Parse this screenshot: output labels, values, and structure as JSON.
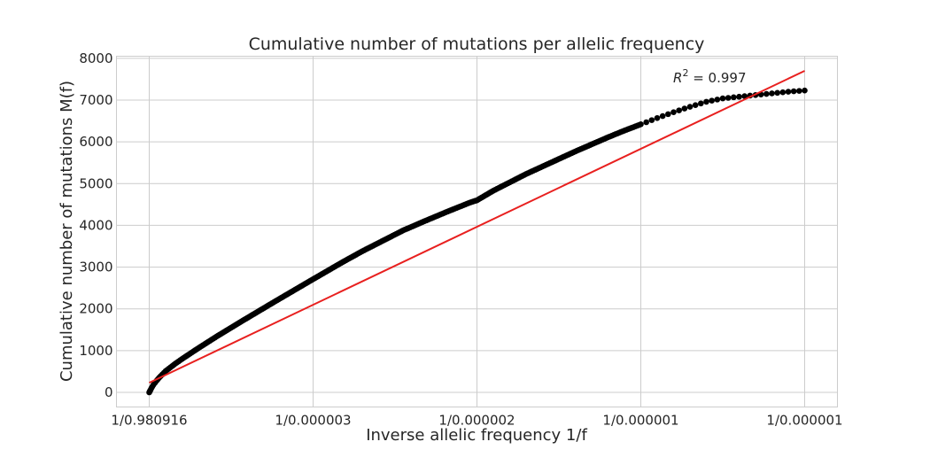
{
  "chart_data": {
    "type": "scatter",
    "title": "Cumulative number of mutations per allelic frequency",
    "xlabel": "Inverse allelic frequency 1/f",
    "ylabel": "Cumulative number of mutations M(f)",
    "x_tick_labels": [
      "1/0.980916",
      "1/0.000003",
      "1/0.000002",
      "1/0.000001",
      "1/0.000001"
    ],
    "x_tick_positions": [
      0,
      100000,
      200000,
      300000,
      400000
    ],
    "xlim": [
      -20000,
      420000
    ],
    "ylim": [
      -350,
      8050
    ],
    "yticks": [
      0,
      1000,
      2000,
      3000,
      4000,
      5000,
      6000,
      7000,
      8000
    ],
    "grid": true,
    "annotation": {
      "r2_value": "0.997"
    },
    "colors": {
      "points": "#000000",
      "fit_line": "#e8201f",
      "grid": "#cccccc"
    },
    "series": [
      {
        "kind": "points",
        "x": [
          0,
          400,
          800,
          1300,
          1900,
          2600,
          3500,
          4500,
          6000,
          8000,
          10000,
          13000,
          16000,
          20000,
          25000,
          30000,
          36000,
          42000,
          50000,
          58000,
          67000,
          76000,
          86000,
          96000,
          107000,
          118000,
          130000,
          142000,
          155000,
          168000,
          182000,
          196000,
          200000,
          210000,
          220000,
          230000,
          240000,
          250000,
          260000,
          270000,
          280000,
          290000,
          300000,
          310000,
          320000,
          330000,
          340000,
          350000,
          360000,
          370000,
          380000,
          390000,
          400000
        ],
        "y": [
          0,
          30,
          60,
          100,
          140,
          185,
          230,
          280,
          350,
          430,
          510,
          600,
          690,
          800,
          930,
          1060,
          1210,
          1360,
          1550,
          1740,
          1950,
          2160,
          2390,
          2620,
          2870,
          3120,
          3380,
          3620,
          3880,
          4100,
          4330,
          4550,
          4600,
          4830,
          5030,
          5230,
          5410,
          5590,
          5770,
          5940,
          6110,
          6270,
          6420,
          6570,
          6710,
          6840,
          6960,
          7040,
          7080,
          7120,
          7160,
          7200,
          7230
        ]
      },
      {
        "kind": "fit",
        "x": [
          0,
          400000
        ],
        "y": [
          230,
          7700
        ]
      }
    ]
  }
}
